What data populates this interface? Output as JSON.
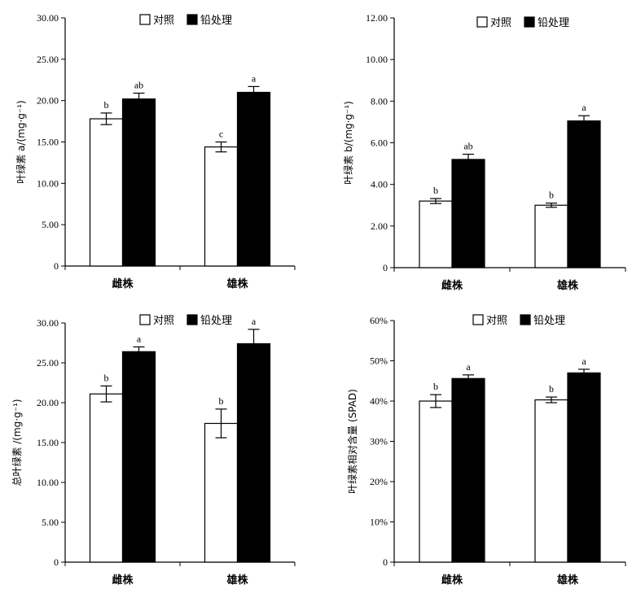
{
  "chart_data": [
    {
      "type": "bar",
      "categories": [
        "雌株",
        "雄株"
      ],
      "series": [
        {
          "name": "对照",
          "color": "#ffffff",
          "values": [
            17.8,
            14.4
          ],
          "errors": [
            0.7,
            0.6
          ],
          "labels": [
            "b",
            "c"
          ]
        },
        {
          "name": "铅处理",
          "color": "#000000",
          "values": [
            20.2,
            21.0
          ],
          "errors": [
            0.7,
            0.7
          ],
          "labels": [
            "ab",
            "a"
          ]
        }
      ],
      "ylabel": "叶绿素 a/(mg·g⁻¹)",
      "ylim": [
        0,
        30
      ],
      "yticks": [
        0,
        5,
        10,
        15,
        20,
        25,
        30
      ],
      "ytick_labels": [
        "0",
        "5.00",
        "10.00",
        "15.00",
        "20.00",
        "25.00",
        "30.00"
      ],
      "legend_position": "top"
    },
    {
      "type": "bar",
      "categories": [
        "雌株",
        "雄株"
      ],
      "series": [
        {
          "name": "对照",
          "color": "#ffffff",
          "values": [
            3.2,
            3.0
          ],
          "errors": [
            0.12,
            0.1
          ],
          "labels": [
            "b",
            "b"
          ]
        },
        {
          "name": "铅处理",
          "color": "#000000",
          "values": [
            5.2,
            7.05
          ],
          "errors": [
            0.25,
            0.25
          ],
          "labels": [
            "ab",
            "a"
          ]
        }
      ],
      "ylabel": "叶绿素 b/(mg·g⁻¹)",
      "ylim": [
        0,
        12
      ],
      "yticks": [
        0,
        2,
        4,
        6,
        8,
        10,
        12
      ],
      "ytick_labels": [
        "0",
        "2.00",
        "4.00",
        "6.00",
        "8.00",
        "10.00",
        "12.00"
      ],
      "legend_position": "top"
    },
    {
      "type": "bar",
      "categories": [
        "雌株",
        "雄株"
      ],
      "series": [
        {
          "name": "对照",
          "color": "#ffffff",
          "values": [
            21.1,
            17.4
          ],
          "errors": [
            1.0,
            1.8
          ],
          "labels": [
            "b",
            "b"
          ]
        },
        {
          "name": "铅处理",
          "color": "#000000",
          "values": [
            26.4,
            27.4
          ],
          "errors": [
            0.6,
            1.8
          ],
          "labels": [
            "a",
            "a"
          ]
        }
      ],
      "ylabel": "总叶绿素 /(mg·g⁻¹)",
      "ylim": [
        0,
        30
      ],
      "yticks": [
        0,
        5,
        10,
        15,
        20,
        25,
        30
      ],
      "ytick_labels": [
        "0",
        "5.00",
        "10.00",
        "15.00",
        "20.00",
        "25.00",
        "30.00"
      ],
      "legend_position": "top"
    },
    {
      "type": "bar",
      "categories": [
        "雌株",
        "雄株"
      ],
      "series": [
        {
          "name": "对照",
          "color": "#ffffff",
          "values": [
            40,
            40.3
          ],
          "errors": [
            1.6,
            0.7
          ],
          "labels": [
            "b",
            "b"
          ]
        },
        {
          "name": "铅处理",
          "color": "#000000",
          "values": [
            45.6,
            47
          ],
          "errors": [
            0.9,
            0.9
          ],
          "labels": [
            "a",
            "a"
          ]
        }
      ],
      "ylabel": "叶绿素相对含量 (SPAD)",
      "ylim": [
        0,
        60
      ],
      "yticks": [
        0,
        10,
        20,
        30,
        40,
        50,
        60
      ],
      "ytick_labels": [
        "0",
        "10%",
        "20%",
        "30%",
        "40%",
        "50%",
        "60%"
      ],
      "legend_position": "top"
    }
  ]
}
